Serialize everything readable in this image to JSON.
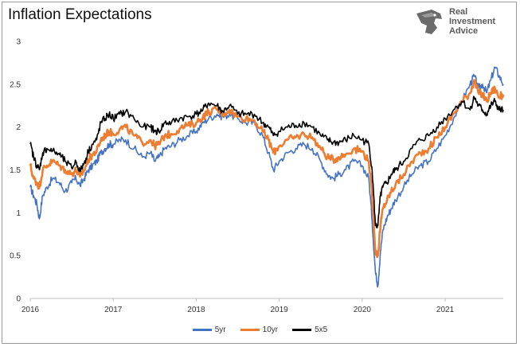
{
  "brand": {
    "line1": "Real",
    "line2": "Investment",
    "line3": "Advice",
    "logo_icon": "eagle-head-icon"
  },
  "colors": {
    "s5yr": "#4472C4",
    "s10yr": "#ED7D31",
    "s5x5": "#000000"
  },
  "chart_data": {
    "type": "line",
    "title": "Inflation Expectations",
    "xlabel": "",
    "ylabel": "",
    "xlim": [
      2016.0,
      2021.7
    ],
    "ylim": [
      0,
      3
    ],
    "yticks": [
      0,
      0.5,
      1,
      1.5,
      2,
      2.5,
      3
    ],
    "ytick_labels": [
      "0",
      "0.5",
      "1",
      "1.5",
      "2",
      "2.5",
      "3"
    ],
    "xticks": [
      2016,
      2017,
      2018,
      2019,
      2020,
      2021
    ],
    "xtick_labels": [
      "2016",
      "2017",
      "2018",
      "2019",
      "2020",
      "2021"
    ],
    "grid": false,
    "legend_position": "bottom-center",
    "series": [
      {
        "name": "5yr",
        "color": "#4472C4",
        "x": [
          2016.0,
          2016.04,
          2016.08,
          2016.11,
          2016.15,
          2016.2,
          2016.27,
          2016.35,
          2016.42,
          2016.5,
          2016.55,
          2016.6,
          2016.65,
          2016.7,
          2016.75,
          2016.8,
          2016.85,
          2016.9,
          2016.95,
          2017.0,
          2017.08,
          2017.15,
          2017.25,
          2017.35,
          2017.45,
          2017.5,
          2017.55,
          2017.62,
          2017.7,
          2017.8,
          2017.9,
          2018.0,
          2018.08,
          2018.15,
          2018.25,
          2018.32,
          2018.4,
          2018.5,
          2018.6,
          2018.7,
          2018.8,
          2018.87,
          2018.93,
          2019.0,
          2019.1,
          2019.2,
          2019.3,
          2019.4,
          2019.5,
          2019.58,
          2019.65,
          2019.72,
          2019.8,
          2019.9,
          2020.0,
          2020.08,
          2020.12,
          2020.16,
          2020.19,
          2020.22,
          2020.25,
          2020.3,
          2020.35,
          2020.4,
          2020.5,
          2020.6,
          2020.7,
          2020.8,
          2020.9,
          2021.0,
          2021.1,
          2021.2,
          2021.3,
          2021.35,
          2021.4,
          2021.45,
          2021.5,
          2021.55,
          2021.6,
          2021.65,
          2021.7
        ],
        "y": [
          1.3,
          1.2,
          1.1,
          0.93,
          1.2,
          1.3,
          1.4,
          1.35,
          1.25,
          1.35,
          1.4,
          1.32,
          1.4,
          1.5,
          1.55,
          1.6,
          1.7,
          1.75,
          1.8,
          1.8,
          1.85,
          1.85,
          1.75,
          1.65,
          1.7,
          1.6,
          1.65,
          1.75,
          1.78,
          1.85,
          1.9,
          1.95,
          2.05,
          2.1,
          2.15,
          2.12,
          2.15,
          2.1,
          2.05,
          2.05,
          1.9,
          1.7,
          1.5,
          1.6,
          1.7,
          1.75,
          1.8,
          1.75,
          1.6,
          1.45,
          1.4,
          1.45,
          1.5,
          1.6,
          1.55,
          1.4,
          0.9,
          0.3,
          0.15,
          0.55,
          0.8,
          0.95,
          1.05,
          1.15,
          1.3,
          1.45,
          1.55,
          1.6,
          1.75,
          1.9,
          2.1,
          2.3,
          2.5,
          2.6,
          2.45,
          2.5,
          2.4,
          2.55,
          2.7,
          2.6,
          2.5
        ]
      },
      {
        "name": "10yr",
        "color": "#ED7D31",
        "x": [
          2016.0,
          2016.04,
          2016.08,
          2016.11,
          2016.15,
          2016.2,
          2016.27,
          2016.35,
          2016.42,
          2016.5,
          2016.55,
          2016.6,
          2016.65,
          2016.7,
          2016.75,
          2016.8,
          2016.85,
          2016.9,
          2016.95,
          2017.0,
          2017.08,
          2017.15,
          2017.25,
          2017.35,
          2017.45,
          2017.5,
          2017.55,
          2017.62,
          2017.7,
          2017.8,
          2017.9,
          2018.0,
          2018.08,
          2018.15,
          2018.25,
          2018.32,
          2018.4,
          2018.5,
          2018.6,
          2018.7,
          2018.8,
          2018.87,
          2018.93,
          2019.0,
          2019.1,
          2019.2,
          2019.3,
          2019.4,
          2019.5,
          2019.58,
          2019.65,
          2019.72,
          2019.8,
          2019.9,
          2020.0,
          2020.08,
          2020.12,
          2020.16,
          2020.19,
          2020.22,
          2020.25,
          2020.3,
          2020.35,
          2020.4,
          2020.5,
          2020.6,
          2020.7,
          2020.8,
          2020.9,
          2021.0,
          2021.1,
          2021.2,
          2021.3,
          2021.35,
          2021.4,
          2021.45,
          2021.5,
          2021.55,
          2021.6,
          2021.65,
          2021.7
        ],
        "y": [
          1.55,
          1.4,
          1.35,
          1.3,
          1.5,
          1.55,
          1.6,
          1.55,
          1.5,
          1.45,
          1.5,
          1.42,
          1.5,
          1.62,
          1.68,
          1.72,
          1.85,
          1.9,
          1.95,
          1.92,
          1.98,
          2.0,
          1.9,
          1.82,
          1.85,
          1.78,
          1.8,
          1.9,
          1.92,
          1.98,
          2.02,
          2.05,
          2.12,
          2.18,
          2.2,
          2.15,
          2.2,
          2.12,
          2.1,
          2.08,
          1.95,
          1.85,
          1.7,
          1.78,
          1.85,
          1.88,
          1.92,
          1.88,
          1.75,
          1.65,
          1.62,
          1.65,
          1.68,
          1.75,
          1.72,
          1.6,
          1.2,
          0.55,
          0.5,
          0.85,
          1.05,
          1.15,
          1.25,
          1.32,
          1.45,
          1.6,
          1.7,
          1.75,
          1.88,
          2.0,
          2.15,
          2.3,
          2.4,
          2.55,
          2.4,
          2.38,
          2.3,
          2.4,
          2.45,
          2.35,
          2.38
        ]
      },
      {
        "name": "5x5",
        "color": "#000000",
        "x": [
          2016.0,
          2016.04,
          2016.08,
          2016.11,
          2016.15,
          2016.2,
          2016.27,
          2016.35,
          2016.42,
          2016.5,
          2016.55,
          2016.6,
          2016.65,
          2016.7,
          2016.75,
          2016.8,
          2016.85,
          2016.9,
          2016.95,
          2017.0,
          2017.08,
          2017.15,
          2017.25,
          2017.35,
          2017.45,
          2017.5,
          2017.55,
          2017.62,
          2017.7,
          2017.8,
          2017.9,
          2018.0,
          2018.08,
          2018.15,
          2018.25,
          2018.32,
          2018.4,
          2018.5,
          2018.6,
          2018.7,
          2018.8,
          2018.87,
          2018.93,
          2019.0,
          2019.1,
          2019.2,
          2019.3,
          2019.4,
          2019.5,
          2019.58,
          2019.65,
          2019.72,
          2019.8,
          2019.9,
          2020.0,
          2020.08,
          2020.12,
          2020.16,
          2020.19,
          2020.22,
          2020.25,
          2020.3,
          2020.35,
          2020.4,
          2020.5,
          2020.6,
          2020.7,
          2020.8,
          2020.9,
          2021.0,
          2021.1,
          2021.2,
          2021.3,
          2021.35,
          2021.4,
          2021.45,
          2021.5,
          2021.55,
          2021.6,
          2021.65,
          2021.7
        ],
        "y": [
          1.8,
          1.65,
          1.55,
          1.5,
          1.7,
          1.75,
          1.72,
          1.68,
          1.6,
          1.52,
          1.6,
          1.48,
          1.58,
          1.72,
          1.8,
          1.85,
          2.05,
          2.1,
          2.15,
          2.1,
          2.15,
          2.18,
          2.1,
          2.0,
          2.0,
          1.95,
          1.95,
          2.05,
          2.05,
          2.1,
          2.12,
          2.15,
          2.2,
          2.28,
          2.25,
          2.18,
          2.25,
          2.15,
          2.15,
          2.15,
          2.05,
          2.0,
          1.9,
          1.95,
          2.0,
          2.02,
          2.05,
          2.0,
          1.9,
          1.85,
          1.82,
          1.82,
          1.85,
          1.9,
          1.85,
          1.8,
          1.5,
          0.85,
          0.85,
          1.2,
          1.3,
          1.35,
          1.45,
          1.5,
          1.6,
          1.75,
          1.85,
          1.9,
          2.0,
          2.1,
          2.2,
          2.3,
          2.2,
          2.35,
          2.25,
          2.2,
          2.15,
          2.25,
          2.3,
          2.2,
          2.2
        ]
      }
    ]
  }
}
